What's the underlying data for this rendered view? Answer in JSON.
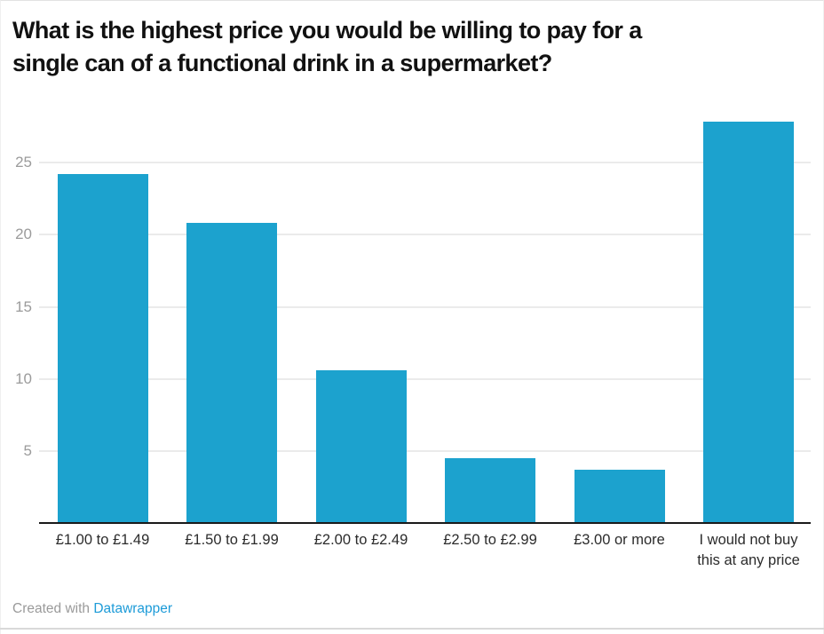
{
  "title": {
    "line1": "What is the highest price you would be willing to pay for a",
    "line2": "single can of a functional drink in a supermarket?"
  },
  "footer": {
    "prefix": "Created with ",
    "link_label": "Datawrapper"
  },
  "colors": {
    "bar": "#1CA2CE",
    "title": "#111111",
    "grid": "#EBEBEB",
    "ticks": "#9B9B9B",
    "baseline": "#1A1A1A",
    "categories": "#2B2B2B",
    "footer_text": "#9A9A9A",
    "link": "#1D9BD8",
    "bottom_rule": "#D9D9D9"
  },
  "chart_data": {
    "type": "bar",
    "title": "What is the highest price you would be willing to pay for a single can of a functional drink in a supermarket?",
    "categories": [
      "£1.00 to £1.49",
      "£1.50 to £1.99",
      "£2.00 to £2.49",
      "£2.50 to £2.99",
      "£3.00 or more",
      "I would not buy\nthis at any price"
    ],
    "values": [
      24.2,
      20.8,
      10.6,
      4.5,
      3.7,
      27.8
    ],
    "y_ticks": [
      5,
      10,
      15,
      20,
      25
    ],
    "ylim": [
      0,
      28
    ],
    "xlabel": "",
    "ylabel": "",
    "grid": true,
    "legend": "none",
    "bar_color": "#1CA2CE",
    "credit": "Created with Datawrapper"
  }
}
